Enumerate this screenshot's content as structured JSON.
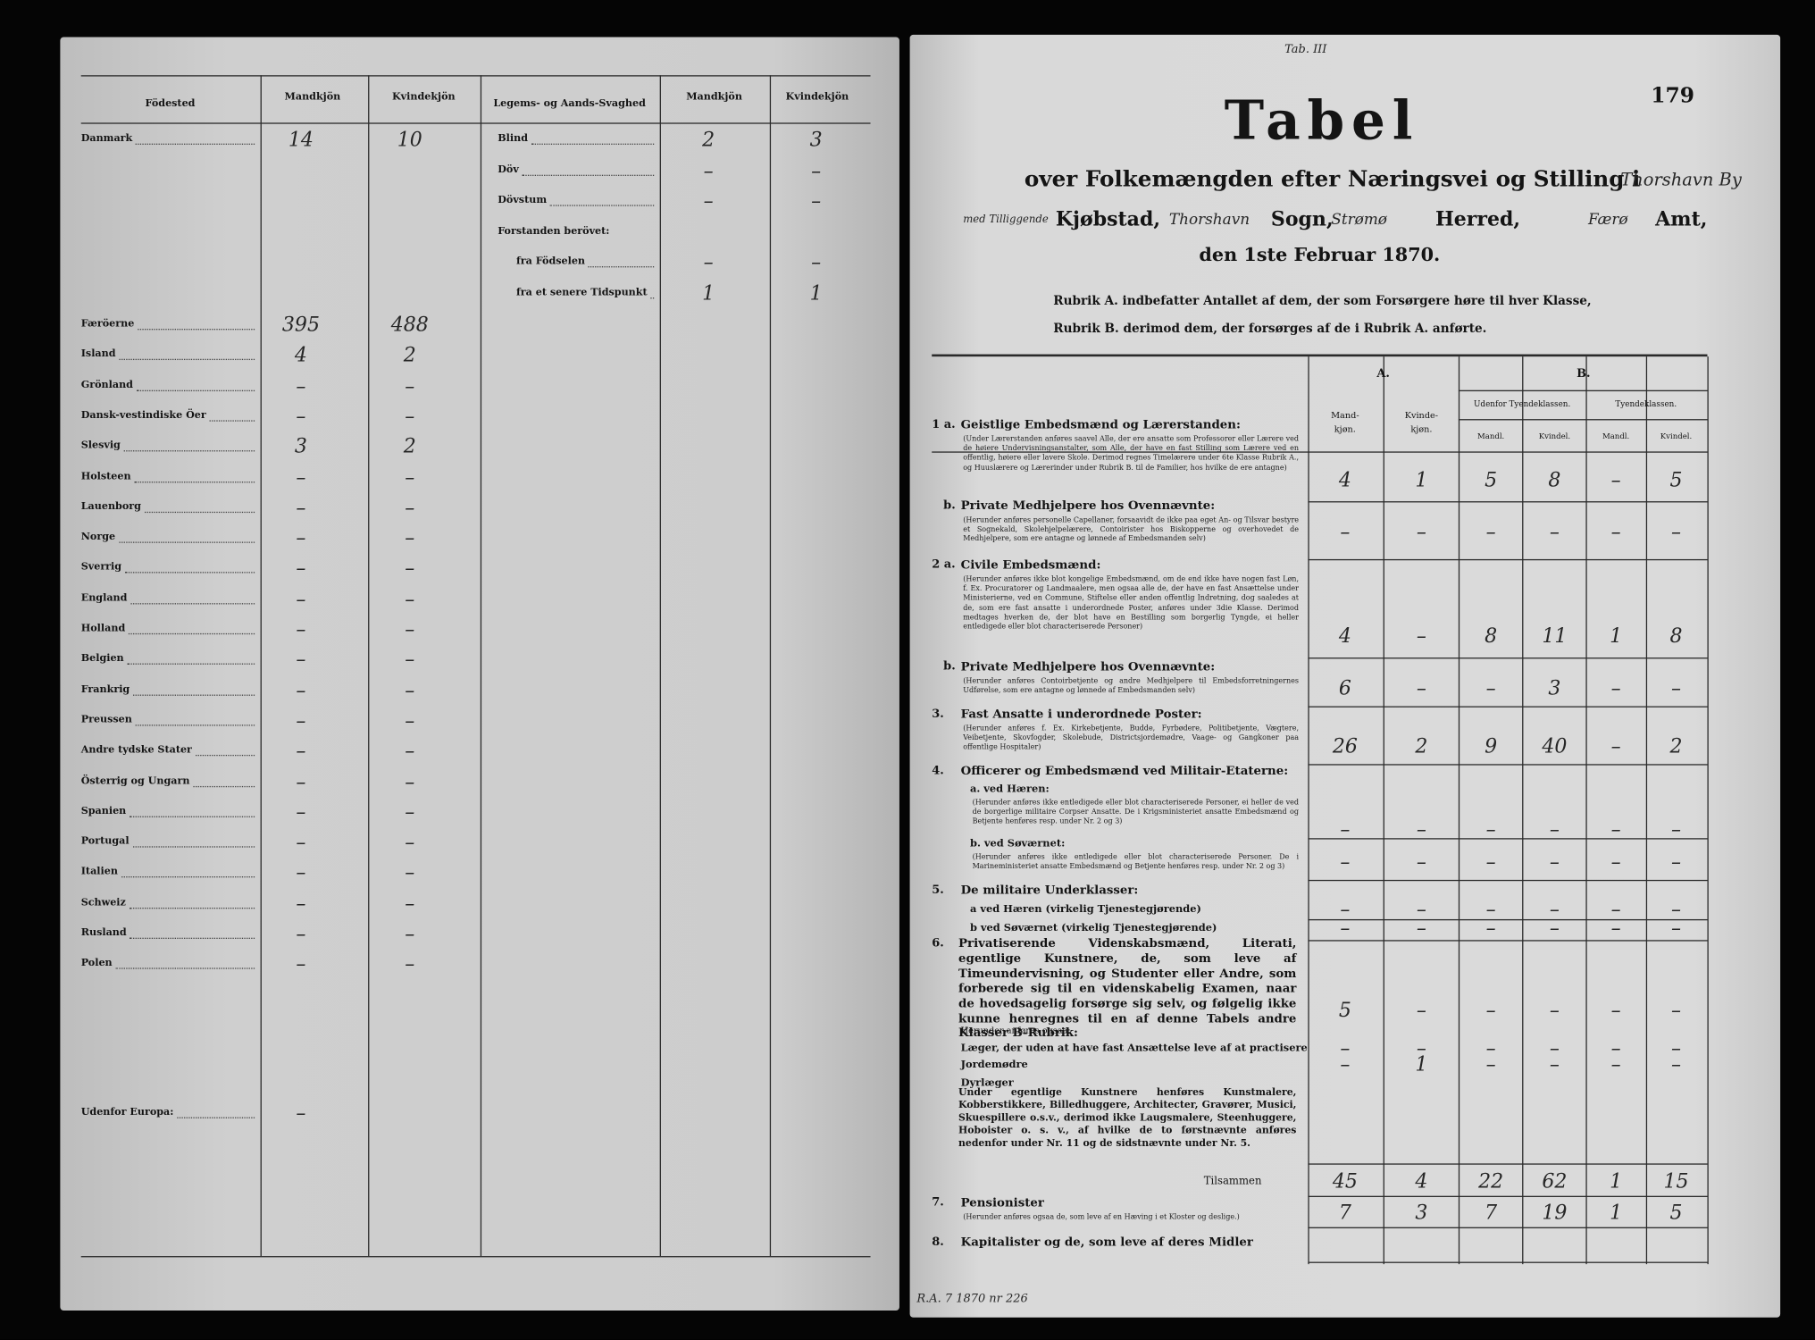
{
  "left": {
    "headers": [
      "Födested",
      "Mandkjön",
      "Kvindekjön",
      "Legems- og Aands-Svaghed",
      "Mandkjön",
      "Kvindekjön"
    ],
    "birthplaces": [
      {
        "label": "Danmark",
        "male": 14,
        "female": 10
      },
      {
        "label": "Færöerne",
        "male": 395,
        "female": 488
      },
      {
        "label": "Island",
        "male": 4,
        "female": 2
      },
      {
        "label": "Grönland",
        "male": "–",
        "female": "–"
      },
      {
        "label": "Dansk-vestindiske Öer",
        "male": "–",
        "female": "–"
      },
      {
        "label": "Slesvig",
        "male": 3,
        "female": 2
      },
      {
        "label": "Holsteen",
        "male": "–",
        "female": "–"
      },
      {
        "label": "Lauenborg",
        "male": "–",
        "female": "–"
      },
      {
        "label": "Norge",
        "male": "–",
        "female": "–"
      },
      {
        "label": "Sverrig",
        "male": "–",
        "female": "–"
      },
      {
        "label": "England",
        "male": "–",
        "female": "–"
      },
      {
        "label": "Holland",
        "male": "–",
        "female": "–"
      },
      {
        "label": "Belgien",
        "male": "–",
        "female": "–"
      },
      {
        "label": "Frankrig",
        "male": "–",
        "female": "–"
      },
      {
        "label": "Preussen",
        "male": "–",
        "female": "–"
      },
      {
        "label": "Andre tydske Stater",
        "male": "–",
        "female": "–"
      },
      {
        "label": "Österrig og Ungarn",
        "male": "–",
        "female": "–"
      },
      {
        "label": "Spanien",
        "male": "–",
        "female": "–"
      },
      {
        "label": "Portugal",
        "male": "–",
        "female": "–"
      },
      {
        "label": "Italien",
        "male": "–",
        "female": "–"
      },
      {
        "label": "Schweiz",
        "male": "–",
        "female": "–"
      },
      {
        "label": "Rusland",
        "male": "–",
        "female": "–"
      },
      {
        "label": "Polen",
        "male": "–",
        "female": "–"
      },
      {
        "label": "Udenfor Europa:",
        "male": "–"
      }
    ],
    "infirmities": [
      {
        "label": "Blind",
        "male": 2,
        "female": 3
      },
      {
        "label": "Döv",
        "male": "–",
        "female": "–"
      },
      {
        "label": "Dövstum",
        "male": "–",
        "female": "–"
      },
      {
        "label": "Forstanden berövet:"
      },
      {
        "label": "fra Födselen",
        "male": "–",
        "female": "–"
      },
      {
        "label": "fra et senere Tidspunkt",
        "male": 1,
        "female": 1
      }
    ]
  },
  "right": {
    "stamp": "Tab. III",
    "page_number": 179,
    "title": "Tabel",
    "subtitle": "over Folkemængden efter Næringsvei og Stilling i",
    "place": "Thorshavn By",
    "location_line": [
      "med Tilliggende",
      "Kjøbstad,",
      "Thorshavn",
      "Sogn,",
      "Strømø",
      "Herred,",
      "Færø",
      "Amt,"
    ],
    "date": "den 1ste Februar 1870.",
    "rubrik_a": "Rubrik A. indbefatter Antallet af dem, der som Forsørgere høre til hver Klasse,",
    "rubrik_b": "Rubrik B. derimod dem, der forsørges af de i Rubrik A. anførte.",
    "table": {
      "group_a": "A.",
      "group_b": "B.",
      "col_a": [
        "Mand-kjøn.",
        "Kvinde-kjøn."
      ],
      "sub_b": [
        "Udenfor Tyendeklassen.",
        "Tyendeklassen."
      ],
      "col_b": [
        "Mandl.",
        "Kvindel.",
        "Mandl.",
        "Kvindel."
      ],
      "rows": [
        {
          "no": "1 a.",
          "label": "Geistlige Embedsmænd og Lærerstanden:",
          "note": "(Under Lærerstanden anføres saavel Alle, der ere ansatte som Professorer eller Lærere ved de høiere Undervisningsanstalter, som Alle, der have en fast Stilling som Lærere ved en offentlig, høiere eller lavere Skole. Derimod regnes Timelærere under 6te Klasse Rubrik A., og Huuslærere og Lærerinder under Rubrik B. til de Familier, hos hvilke de ere antagne)",
          "values": [
            4,
            1,
            5,
            8,
            "–",
            5
          ]
        },
        {
          "no": "b.",
          "label": "Private Medhjelpere hos Ovennævnte:",
          "note": "(Herunder anføres personelle Capellaner, forsaavidt de ikke paa eget An- og Tilsvar bestyre et Sognekald, Skolehjelpelærere, Contoirister hos Biskopperne og overhovedet de Medhjelpere, som ere antagne og lønnede af Embedsmanden selv)",
          "values": [
            "–",
            "–",
            "–",
            "–",
            "–",
            "–"
          ]
        },
        {
          "no": "2 a.",
          "label": "Civile Embedsmænd:",
          "note": "(Herunder anføres ikke blot kongelige Embedsmænd, om de end ikke have nogen fast Løn, f. Ex. Procuratorer og Landmaalere, men ogsaa alle de, der have en fast Ansættelse under Ministerierne, ved en Commune, Stiftelse eller anden offentlig Indretning, dog saaledes at de, som ere fast ansatte i underordnede Poster, anføres under 3die Klasse. Derimod medtages hverken de, der blot have en Bestilling som borgerlig Tyngde, ei heller entledigede eller blot characteriserede Personer)",
          "values": [
            4,
            "–",
            8,
            11,
            1,
            8
          ]
        },
        {
          "no": "b.",
          "label": "Private Medhjelpere hos Ovennævnte:",
          "note": "(Herunder anføres Contoirbetjente og andre Medhjelpere til Embedsforretningernes Udførelse, som ere antagne og lønnede af Embedsmanden selv)",
          "values": [
            6,
            "–",
            "–",
            3,
            "–",
            "–"
          ]
        },
        {
          "no": "3.",
          "label": "Fast Ansatte i underordnede Poster:",
          "note": "(Herunder anføres f. Ex. Kirkebetjente, Budde, Fyrbødere, Politibetjente, Vægtere, Veibetjente, Skovfogder, Skolebude, Districtsjordemødre, Vaage- og Gangkoner paa offentlige Hospitaler)",
          "values": [
            26,
            2,
            9,
            40,
            "–",
            2
          ]
        },
        {
          "no": "4.",
          "label": "Officerer og Embedsmænd ved Militair-Etaterne:"
        },
        {
          "label": "a. ved Hæren:",
          "note": "(Herunder anføres ikke entledigede eller blot characteriserede Personer, ei heller de ved de borgerlige militaire Corpser Ansatte. De i Krigsministeriet ansatte Embedsmænd og Betjente henføres resp. under Nr. 2 og 3)",
          "values": [
            "–",
            "–",
            "–",
            "–",
            "–",
            "–"
          ]
        },
        {
          "label": "b. ved Søværnet:",
          "note": "(Herunder anføres ikke entledigede eller blot characteriserede Personer. De i Marineministeriet ansatte Embedsmænd og Betjente henføres resp. under Nr. 2 og 3)",
          "values": [
            "–",
            "–",
            "–",
            "–",
            "–",
            "–"
          ]
        },
        {
          "no": "5.",
          "label": "De militaire Underklasser:"
        },
        {
          "label": "a ved Hæren (virkelig Tjenestegjørende)",
          "values": [
            "–",
            "–",
            "–",
            "–",
            "–",
            "–"
          ]
        },
        {
          "label": "b ved Søværnet (virkelig Tjenestegjørende)",
          "values": [
            "–",
            "–",
            "–",
            "–",
            "–",
            "–"
          ]
        },
        {
          "no": "6.",
          "label": "Privatiserende Videnskabsmænd, Literati, egentlige Kunstnere, de, som leve af Timeundervisning, og Studenter eller Andre, som forberede sig til en videnskabelig Examen, naar de hovedsagelig forsørge sig selv, og følgelig ikke kunne henregnes til en af denne Tabels andre Klasser B-Rubrik:",
          "values": [
            5,
            "–",
            "–",
            "–",
            "–",
            "–"
          ]
        },
        {
          "label": "Herunder anføres ogsaa:"
        },
        {
          "label": "Læger, der uden at have fast Ansættelse leve af at practisere",
          "values": [
            "–",
            "–",
            "–",
            "–",
            "–",
            "–"
          ]
        },
        {
          "label": "Jordemødre",
          "values": [
            "–",
            1,
            "–",
            "–",
            "–",
            "–"
          ]
        },
        {
          "label": "Dyrlæger"
        },
        {
          "label": "Under egentlige Kunstnere henføres Kunstmalere, Kobberstikkere, Billedhuggere, Architecter, Gravører, Musici, Skuespillere o.s.v., derimod ikke Laugsmalere, Steenhuggere, Hoboister o. s. v., af hvilke de to førstnævnte anføres nedenfor under Nr. 11 og de sidstnævnte under Nr. 5."
        },
        {
          "label": "Tilsammen",
          "values": [
            45,
            4,
            22,
            62,
            1,
            15
          ]
        },
        {
          "no": "7.",
          "label": "Pensionister",
          "note": "(Herunder anføres ogsaa de, som leve af en Hæving i et Kloster og deslige.)",
          "values": [
            7,
            3,
            7,
            19,
            1,
            5
          ]
        },
        {
          "no": "8.",
          "label": "Kapitalister og de, som leve af deres Midler"
        }
      ]
    },
    "archive_note": "R.A. 7 1870 nr 226"
  }
}
